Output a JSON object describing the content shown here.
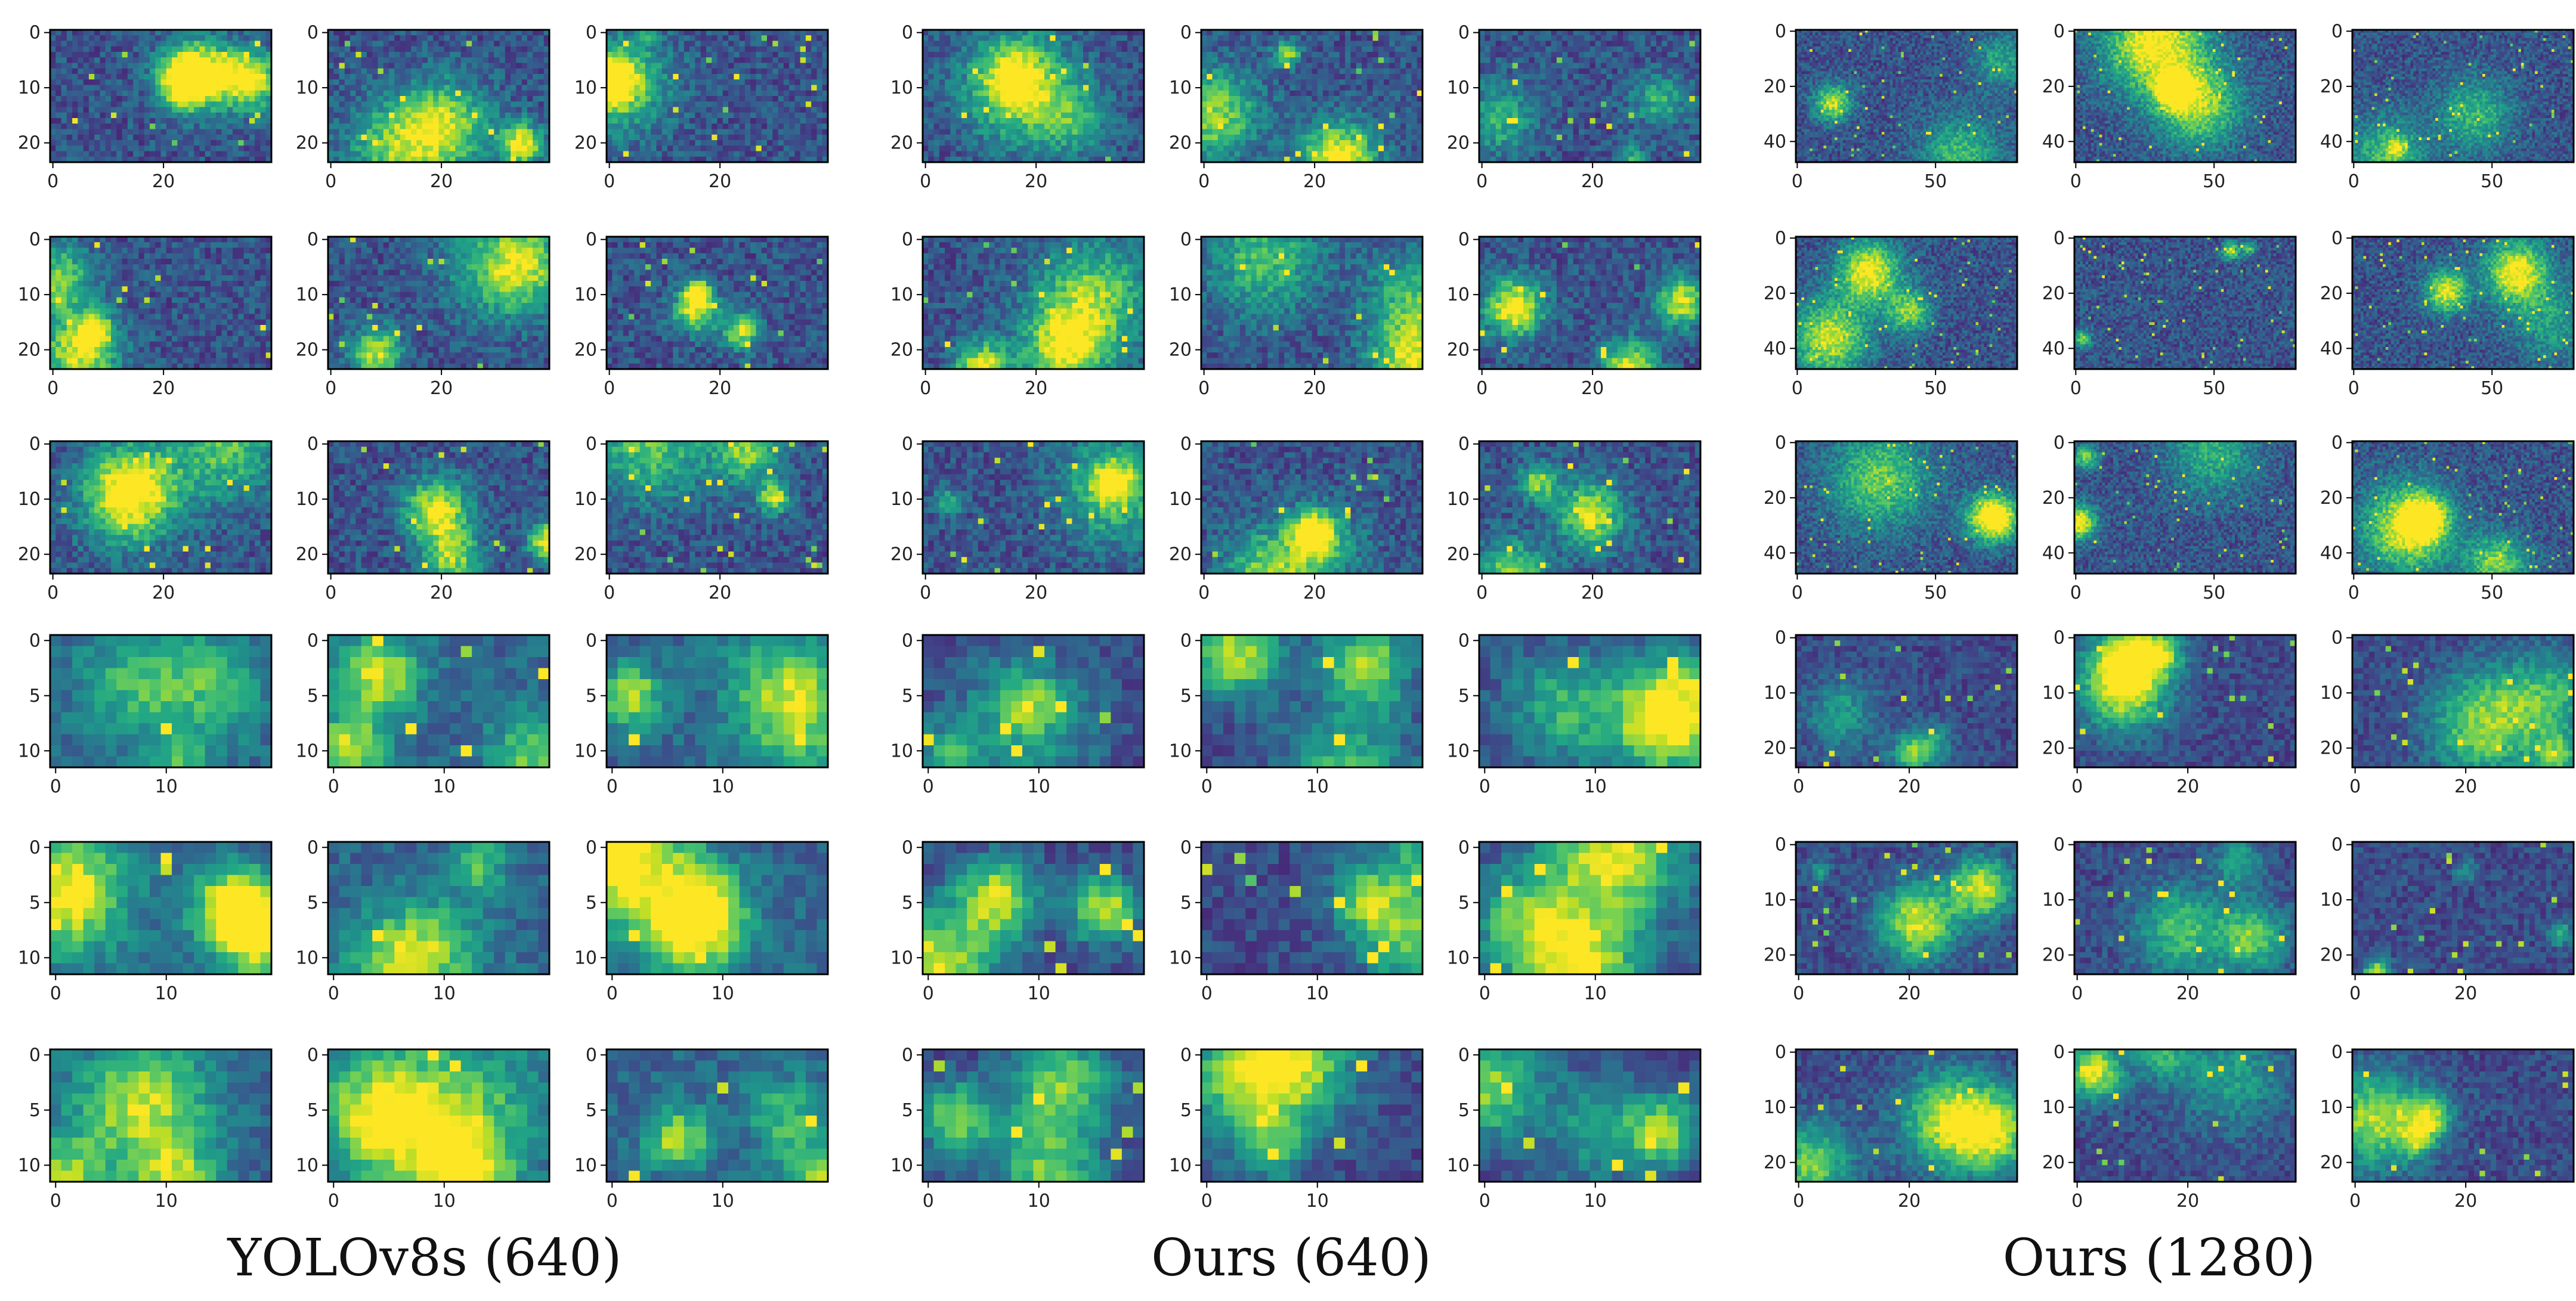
{
  "chart_data": {
    "type": "heatmap",
    "colormap": "viridis",
    "grid": false,
    "groups": [
      {
        "caption": "YOLOv8s (640)",
        "panels_per_row": 3,
        "rows": [
          {
            "x_ticks": [
              "0",
              "20"
            ],
            "y_ticks": [
              "0",
              "10",
              "20"
            ],
            "xlim": [
              0,
              39
            ],
            "ylim": [
              23,
              0
            ]
          },
          {
            "x_ticks": [
              "0",
              "20"
            ],
            "y_ticks": [
              "0",
              "10",
              "20"
            ],
            "xlim": [
              0,
              39
            ],
            "ylim": [
              23,
              0
            ]
          },
          {
            "x_ticks": [
              "0",
              "20"
            ],
            "y_ticks": [
              "0",
              "10",
              "20"
            ],
            "xlim": [
              0,
              39
            ],
            "ylim": [
              23,
              0
            ]
          },
          {
            "x_ticks": [
              "0",
              "10"
            ],
            "y_ticks": [
              "0",
              "5",
              "10"
            ],
            "xlim": [
              0,
              19
            ],
            "ylim": [
              11,
              0
            ]
          },
          {
            "x_ticks": [
              "0",
              "10"
            ],
            "y_ticks": [
              "0",
              "5",
              "10"
            ],
            "xlim": [
              0,
              19
            ],
            "ylim": [
              11,
              0
            ]
          },
          {
            "x_ticks": [
              "0",
              "10"
            ],
            "y_ticks": [
              "0",
              "5",
              "10"
            ],
            "xlim": [
              0,
              19
            ],
            "ylim": [
              11,
              0
            ]
          }
        ]
      },
      {
        "caption": "Ours (640)",
        "panels_per_row": 3,
        "rows": [
          {
            "x_ticks": [
              "0",
              "20"
            ],
            "y_ticks": [
              "0",
              "10",
              "20"
            ],
            "xlim": [
              0,
              39
            ],
            "ylim": [
              23,
              0
            ]
          },
          {
            "x_ticks": [
              "0",
              "20"
            ],
            "y_ticks": [
              "0",
              "10",
              "20"
            ],
            "xlim": [
              0,
              39
            ],
            "ylim": [
              23,
              0
            ]
          },
          {
            "x_ticks": [
              "0",
              "20"
            ],
            "y_ticks": [
              "0",
              "10",
              "20"
            ],
            "xlim": [
              0,
              39
            ],
            "ylim": [
              23,
              0
            ]
          },
          {
            "x_ticks": [
              "0",
              "10"
            ],
            "y_ticks": [
              "0",
              "5",
              "10"
            ],
            "xlim": [
              0,
              19
            ],
            "ylim": [
              11,
              0
            ]
          },
          {
            "x_ticks": [
              "0",
              "10"
            ],
            "y_ticks": [
              "0",
              "5",
              "10"
            ],
            "xlim": [
              0,
              19
            ],
            "ylim": [
              11,
              0
            ]
          },
          {
            "x_ticks": [
              "0",
              "10"
            ],
            "y_ticks": [
              "0",
              "5",
              "10"
            ],
            "xlim": [
              0,
              19
            ],
            "ylim": [
              11,
              0
            ]
          }
        ]
      },
      {
        "caption": "Ours (1280)",
        "panels_per_row": 3,
        "rows": [
          {
            "x_ticks": [
              "0",
              "50"
            ],
            "y_ticks": [
              "0",
              "20",
              "40"
            ],
            "xlim": [
              0,
              79
            ],
            "ylim": [
              47,
              0
            ]
          },
          {
            "x_ticks": [
              "0",
              "50"
            ],
            "y_ticks": [
              "0",
              "20",
              "40"
            ],
            "xlim": [
              0,
              79
            ],
            "ylim": [
              47,
              0
            ]
          },
          {
            "x_ticks": [
              "0",
              "50"
            ],
            "y_ticks": [
              "0",
              "20",
              "40"
            ],
            "xlim": [
              0,
              79
            ],
            "ylim": [
              47,
              0
            ]
          },
          {
            "x_ticks": [
              "0",
              "20"
            ],
            "y_ticks": [
              "0",
              "10",
              "20"
            ],
            "xlim": [
              0,
              39
            ],
            "ylim": [
              23,
              0
            ]
          },
          {
            "x_ticks": [
              "0",
              "20"
            ],
            "y_ticks": [
              "0",
              "10",
              "20"
            ],
            "xlim": [
              0,
              39
            ],
            "ylim": [
              23,
              0
            ]
          },
          {
            "x_ticks": [
              "0",
              "20"
            ],
            "y_ticks": [
              "0",
              "10",
              "20"
            ],
            "xlim": [
              0,
              39
            ],
            "ylim": [
              23,
              0
            ]
          }
        ]
      }
    ]
  }
}
